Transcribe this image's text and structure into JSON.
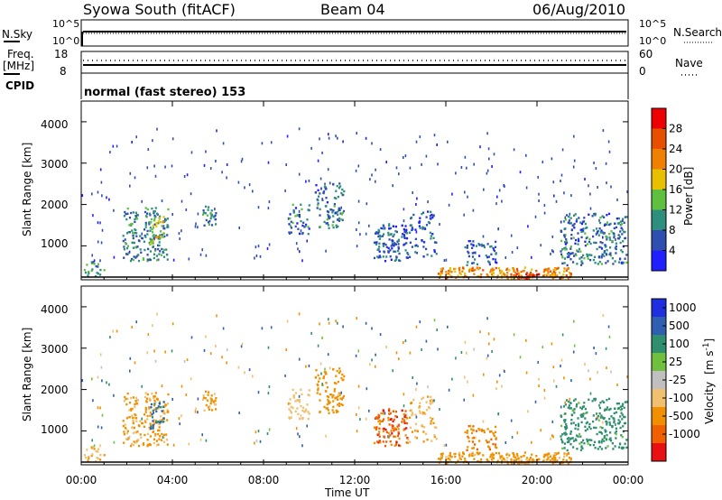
{
  "header": {
    "station": "Syowa South (fitACF)",
    "beam": "Beam 04",
    "date": "06/Aug/2010"
  },
  "nsky_panel": {
    "left_label": "N.Sky",
    "right_label": "N.Search",
    "left_ticks": [
      "10^5",
      "10^0"
    ],
    "right_ticks": [
      "10^5",
      "10^0"
    ]
  },
  "freq_panel": {
    "left_label_line1": "Freq.",
    "left_label_line2": "[MHz]",
    "right_label": "Nave",
    "left_ticks": [
      "18",
      "8"
    ],
    "right_ticks": [
      "60",
      "0"
    ]
  },
  "cpid": {
    "label": "CPID",
    "text": "normal (fast stereo) 153"
  },
  "power_panel": {
    "ylabel": "Slant Range [km]",
    "yticks": [
      "1000",
      "2000",
      "3000",
      "4000"
    ],
    "colorbar_label": "Power [dB]",
    "colorbar_ticks": [
      "4",
      "8",
      "12",
      "16",
      "20",
      "24",
      "28"
    ],
    "colorbar_colors": [
      "#1f1fff",
      "#2f4fb0",
      "#2f8f7f",
      "#5fbf3f",
      "#e8c000",
      "#f08000",
      "#e85000",
      "#ee0000"
    ]
  },
  "velocity_panel": {
    "ylabel": "Slant Range [km]",
    "yticks": [
      "1000",
      "2000",
      "3000",
      "4000"
    ],
    "colorbar_label": "Velocity [m s-1]",
    "colorbar_label_main": "Velocity",
    "colorbar_label_unit": "[m s",
    "colorbar_label_exp": "-1",
    "colorbar_label_close": "]",
    "colorbar_ticks": [
      "1000",
      "500",
      "100",
      "25",
      "-25",
      "-100",
      "-500",
      "-1000"
    ],
    "colorbar_colors": [
      "#1f2fe0",
      "#2f5fb0",
      "#2f8f6f",
      "#6fc03f",
      "#c0c0c0",
      "#f0c070",
      "#f09000",
      "#f06000",
      "#e81010"
    ]
  },
  "x_axis": {
    "label": "Time UT",
    "ticks": [
      "00:00",
      "04:00",
      "08:00",
      "12:00",
      "16:00",
      "20:00",
      "00:00"
    ]
  },
  "chart_data": {
    "type": "heatmap",
    "x_range_hours": [
      0,
      24
    ],
    "y_range_km": [
      180,
      4500
    ],
    "clusters": [
      {
        "name": "c01",
        "t0": 0.0,
        "t1": 1.0,
        "r0": 200,
        "r1": 600,
        "power": 10,
        "velocity": -80,
        "density": 0.35
      },
      {
        "name": "c02",
        "t0": 1.8,
        "t1": 3.8,
        "r0": 600,
        "r1": 1900,
        "power": 9,
        "velocity": -120,
        "density": 0.45
      },
      {
        "name": "c03",
        "t0": 3.0,
        "t1": 3.6,
        "r0": 1000,
        "r1": 1700,
        "power": 16,
        "velocity": 120,
        "density": 0.5
      },
      {
        "name": "c04",
        "t0": 5.3,
        "t1": 5.9,
        "r0": 1450,
        "r1": 1950,
        "power": 9,
        "velocity": -150,
        "density": 0.6
      },
      {
        "name": "c05",
        "t0": 9.0,
        "t1": 10.0,
        "r0": 1200,
        "r1": 2000,
        "power": 8,
        "velocity": -60,
        "density": 0.35
      },
      {
        "name": "c06",
        "t0": 10.2,
        "t1": 11.5,
        "r0": 1400,
        "r1": 2500,
        "power": 8,
        "velocity": -250,
        "density": 0.4
      },
      {
        "name": "c07",
        "t0": 12.8,
        "t1": 14.3,
        "r0": 600,
        "r1": 1500,
        "power": 7,
        "velocity": -700,
        "density": 0.55
      },
      {
        "name": "c08",
        "t0": 14.3,
        "t1": 15.6,
        "r0": 700,
        "r1": 1800,
        "power": 7,
        "velocity": -90,
        "density": 0.3
      },
      {
        "name": "c09",
        "t0": 16.8,
        "t1": 18.2,
        "r0": 500,
        "r1": 1100,
        "power": 6,
        "velocity": -400,
        "density": 0.4
      },
      {
        "name": "c10",
        "t0": 15.6,
        "t1": 21.6,
        "r0": 180,
        "r1": 450,
        "power": 22,
        "velocity": -140,
        "density": 0.75
      },
      {
        "name": "c11",
        "t0": 19.0,
        "t1": 20.3,
        "r0": 180,
        "r1": 300,
        "power": 29,
        "velocity": -120,
        "density": 0.85
      },
      {
        "name": "c12",
        "t0": 21.0,
        "t1": 23.9,
        "r0": 500,
        "r1": 1750,
        "power": 8,
        "velocity": 60,
        "density": 0.45
      }
    ]
  }
}
